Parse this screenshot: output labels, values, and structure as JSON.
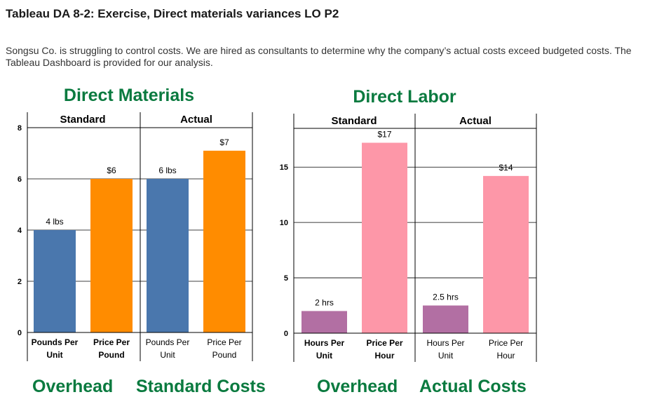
{
  "page": {
    "title": "Tableau DA 8-2: Exercise, Direct materials variances LO P2",
    "intro": "Songsu Co. is struggling to control costs. We are hired as consultants to determine why the company’s actual costs exceed budgeted costs. The Tableau Dashboard is provided for our analysis."
  },
  "footer": {
    "left_a": "Overhead",
    "left_b": "Standard Costs",
    "right_a": "Overhead",
    "right_b": "Actual Costs"
  },
  "colors": {
    "quantity_blue": "#4a77ad",
    "price_orange": "#ff8c00",
    "hours_purple": "#b26fa3",
    "rate_pink": "#fd97a8",
    "title_green": "#0a7a3f"
  },
  "chart_data": [
    {
      "type": "bar",
      "title": "Direct Materials",
      "ylim": [
        0,
        8
      ],
      "y_ticks": [
        "0",
        "2",
        "4",
        "6",
        "8"
      ],
      "groups": [
        "Standard",
        "Actual"
      ],
      "bars": [
        {
          "group": "Standard",
          "category": [
            "Pounds Per",
            "Unit"
          ],
          "value": 4,
          "label": "4 lbs",
          "color": "#4a77ad",
          "bold": true
        },
        {
          "group": "Standard",
          "category": [
            "Price Per",
            "Pound"
          ],
          "value": 6,
          "label": "$6",
          "color": "#ff8c00",
          "bold": true
        },
        {
          "group": "Actual",
          "category": [
            "Pounds Per",
            "Unit"
          ],
          "value": 6,
          "label": "6 lbs",
          "color": "#4a77ad",
          "bold": false
        },
        {
          "group": "Actual",
          "category": [
            "Price Per",
            "Pound"
          ],
          "value": 7.1,
          "label": "$7",
          "color": "#ff8c00",
          "bold": false
        }
      ],
      "grid": true
    },
    {
      "type": "bar",
      "title": "Direct Labor",
      "ylim": [
        0,
        18.5
      ],
      "y_ticks": [
        "0",
        "5",
        "10",
        "15"
      ],
      "groups": [
        "Standard",
        "Actual"
      ],
      "bars": [
        {
          "group": "Standard",
          "category": [
            "Hours Per",
            "Unit"
          ],
          "value": 2,
          "label": "2 hrs",
          "color": "#b26fa3",
          "bold": true
        },
        {
          "group": "Standard",
          "category": [
            "Price Per",
            "Hour"
          ],
          "value": 17.2,
          "label": "$17",
          "color": "#fd97a8",
          "bold": true
        },
        {
          "group": "Actual",
          "category": [
            "Hours Per",
            "Unit"
          ],
          "value": 2.5,
          "label": "2.5 hrs",
          "color": "#b26fa3",
          "bold": false
        },
        {
          "group": "Actual",
          "category": [
            "Price Per",
            "Hour"
          ],
          "value": 14.2,
          "label": "$14",
          "color": "#fd97a8",
          "bold": false
        }
      ],
      "grid": true
    }
  ]
}
